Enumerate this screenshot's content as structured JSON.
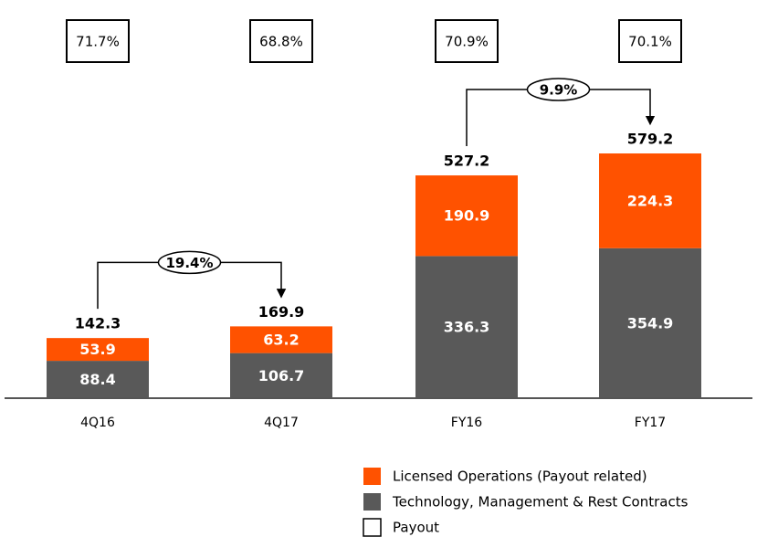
{
  "chart_data": {
    "type": "stacked-bar",
    "categories": [
      "4Q16",
      "4Q17",
      "FY16",
      "FY17"
    ],
    "series": [
      {
        "name": "Technology, Management & Rest Contracts",
        "color": "#595959",
        "values": [
          88.4,
          106.7,
          336.3,
          354.9
        ]
      },
      {
        "name": "Licensed Operations (Payout related)",
        "color": "#ff5200",
        "values": [
          53.9,
          63.2,
          190.9,
          224.3
        ]
      }
    ],
    "totals": [
      142.3,
      169.9,
      527.2,
      579.2
    ],
    "payout": {
      "name": "Payout",
      "values": [
        71.7,
        68.8,
        70.9,
        70.1
      ],
      "value_labels": [
        "71.7%",
        "68.8%",
        "70.9%",
        "70.1%"
      ]
    },
    "annotations": [
      "19.4%",
      "9.9%"
    ]
  }
}
